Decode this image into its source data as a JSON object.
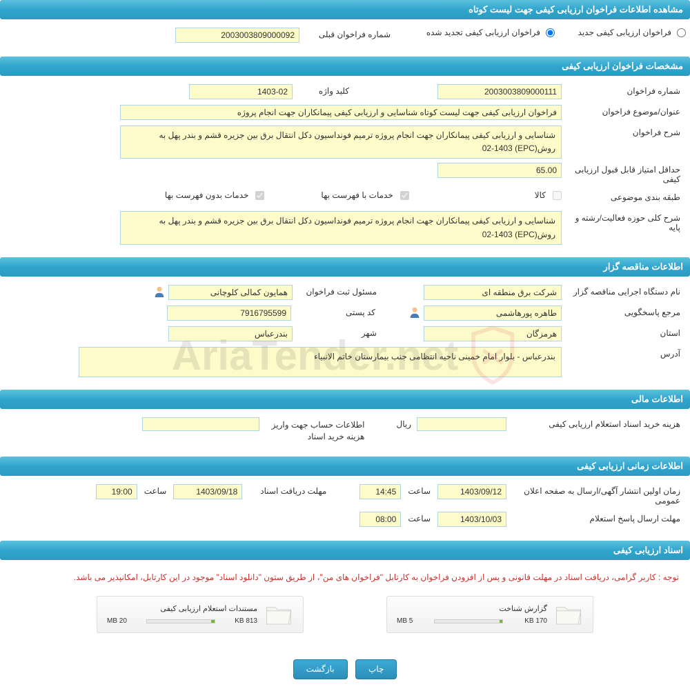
{
  "colors": {
    "header_bg_top": "#5bc0de",
    "header_bg_bottom": "#2b9bc1",
    "header_text": "#ffffff",
    "field_bg": "#fdfbc9",
    "field_border": "#b0d4e3",
    "btn_bg_top": "#3da9d6",
    "btn_bg_bottom": "#2b8fb9",
    "note_color": "#c9302c",
    "progress_green": "#7cb342"
  },
  "headers": {
    "main": "مشاهده اطلاعات فراخوان ارزیابی کیفی جهت لیست کوتاه",
    "spec": "مشخصات فراخوان ارزیابی کیفی",
    "org": "اطلاعات مناقصه گزار",
    "finance": "اطلاعات مالی",
    "time": "اطلاعات زمانی ارزیابی کیفی",
    "docs": "اسناد ارزیابی کیفی"
  },
  "top": {
    "radio1_label": "فراخوان ارزیابی کیفی جدید",
    "radio2_label": "فراخوان ارزیابی کیفی تجدید شده",
    "prev_number_label": "شماره فراخوان قبلی",
    "prev_number_value": "2003003809000092"
  },
  "spec": {
    "number_label": "شماره فراخوان",
    "number_value": "2003003809000111",
    "keyword_label": "کلید واژه",
    "keyword_value": "1403-02",
    "title_label": "عنوان/موضوع فراخوان",
    "title_value": "فراخوان ارزیابی کیفی جهت لیست کوتاه شناسایی و ارزیابی کیفی پیمانکاران جهت انجام پروژه",
    "desc_label": "شرح فراخوان",
    "desc_value": "شناسایی و ارزیابی کیفی پیمانکاران جهت انجام پروژه ترمیم فونداسیون دکل انتقال برق بین جزیره قشم و بندر پهل به روش(EPC) 02-1403",
    "min_score_label": "حداقل امتیاز قابل قبول ارزیابی کیفی",
    "min_score_value": "65.00",
    "category_label": "طبقه بندی موضوعی",
    "cb_goods": "کالا",
    "cb_services_list": "خدمات با فهرست بها",
    "cb_services_nolist": "خدمات بدون فهرست بها",
    "activity_label": "شرح کلی حوزه فعالیت/رشته و پایه",
    "activity_value": "شناسایی و ارزیابی کیفی پیمانکاران جهت انجام پروژه ترمیم فونداسیون دکل انتقال برق بین جزیره قشم و بندر پهل به روش(EPC) 02-1403"
  },
  "org": {
    "exec_label": "نام دستگاه اجرایی مناقصه گزار",
    "exec_value": "شرکت برق منطقه ای",
    "reg_label": "مسئول ثبت فراخوان",
    "reg_value": "همایون کمالی کلوچانی",
    "responder_label": "مرجع پاسخگویی",
    "responder_value": "طاهره پورهاشمی",
    "postal_label": "کد پستی",
    "postal_value": "7916795599",
    "province_label": "استان",
    "province_value": "هرمزگان",
    "city_label": "شهر",
    "city_value": "بندرعباس",
    "address_label": "آدرس",
    "address_value": "بندرعباس - بلوار امام خمینی ناحیه انتظامی جنب بیمارستان خاتم الانبیاء"
  },
  "finance": {
    "cost_label": "هزینه خرید اسناد استعلام ارزیابی کیفی",
    "cost_value": "",
    "rial": "ریال",
    "account_label": "اطلاعات حساب جهت واریز هزینه خرید اسناد",
    "account_value": ""
  },
  "time": {
    "publish_label": "زمان اولین انتشار آگهی/ارسال به صفحه اعلان عمومی",
    "publish_date": "1403/09/12",
    "publish_time_label": "ساعت",
    "publish_time": "14:45",
    "receive_label": "مهلت دریافت اسناد",
    "receive_date": "1403/09/18",
    "receive_time_label": "ساعت",
    "receive_time": "19:00",
    "response_label": "مهلت ارسال پاسخ استعلام",
    "response_date": "1403/10/03",
    "response_time_label": "ساعت",
    "response_time": "08:00"
  },
  "docs": {
    "note": "توجه : کاربر گرامی، دریافت اسناد در مهلت قانونی و پس از افزودن فراخوان به کارتابل \"فراخوان های من\"، از طریق ستون \"دانلود اسناد\" موجود در این کارتابل، امکانپذیر می باشد.",
    "attachments": [
      {
        "title": "گزارش شناخت",
        "size": "170 KB",
        "limit": "5 MB",
        "fill_pct": 4
      },
      {
        "title": "مستندات استعلام ارزیابی کیفی",
        "size": "813 KB",
        "limit": "20 MB",
        "fill_pct": 5
      }
    ]
  },
  "buttons": {
    "print": "چاپ",
    "back": "بازگشت"
  },
  "watermark_text": "AriaTender.net"
}
